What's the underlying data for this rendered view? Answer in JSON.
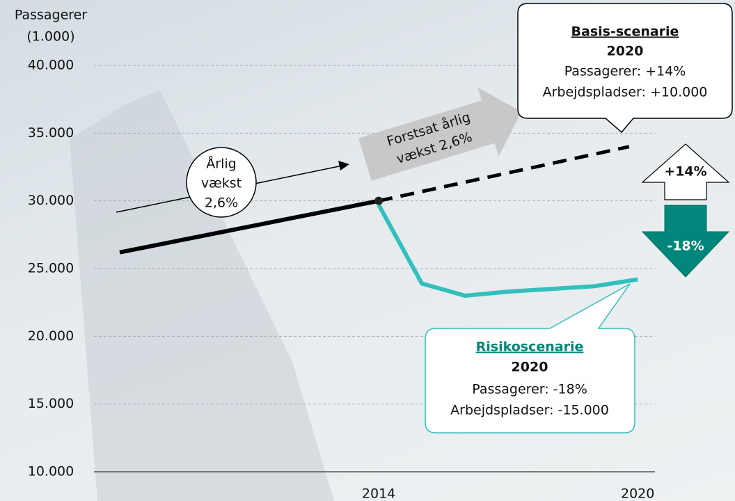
{
  "chart_data": {
    "type": "line",
    "axis_title": "Passagerer",
    "axis_unit": "(1.000)",
    "xlim": [
      2008,
      2020.4
    ],
    "xticks": [
      2014,
      2020
    ],
    "ylim": [
      10000,
      40000
    ],
    "yticks": [
      {
        "value": 10000,
        "label": "10.000"
      },
      {
        "value": 15000,
        "label": "15.000"
      },
      {
        "value": 20000,
        "label": "20.000"
      },
      {
        "value": 25000,
        "label": "25.000"
      },
      {
        "value": 30000,
        "label": "30.000"
      },
      {
        "value": 35000,
        "label": "35.000"
      },
      {
        "value": 40000,
        "label": "40.000"
      }
    ],
    "grid": true,
    "series": [
      {
        "color": "#000000",
        "style": "solid",
        "x": [
          2008,
          2014
        ],
        "values": [
          26200,
          30000
        ]
      },
      {
        "color": "#000000",
        "style": "dashed",
        "x": [
          2014,
          2019.8
        ],
        "values": [
          30000,
          34000
        ]
      },
      {
        "color": "#33c0bc",
        "style": "solid",
        "x": [
          2014,
          2015,
          2016,
          2017,
          2018,
          2019,
          2020
        ],
        "values": [
          29700,
          23900,
          23000,
          23300,
          23500,
          23700,
          24200
        ]
      }
    ],
    "growth_bubble": [
      "Årlig",
      "vækst",
      "2,6%"
    ],
    "trend_arrow": [
      "Forstsat årlig",
      "vækst 2,6%"
    ],
    "basis": {
      "title": "Basis-scenarie",
      "year": "2020",
      "lines": [
        "Passagerer: +14%",
        "Arbejdspladser: +10.000"
      ]
    },
    "risk": {
      "title": "Risikoscenarie",
      "year": "2020",
      "lines": [
        "Passagerer: -18%",
        "Arbejdspladser: -15.000"
      ]
    },
    "up_arrow": "+14%",
    "down_arrow": "-18%"
  }
}
